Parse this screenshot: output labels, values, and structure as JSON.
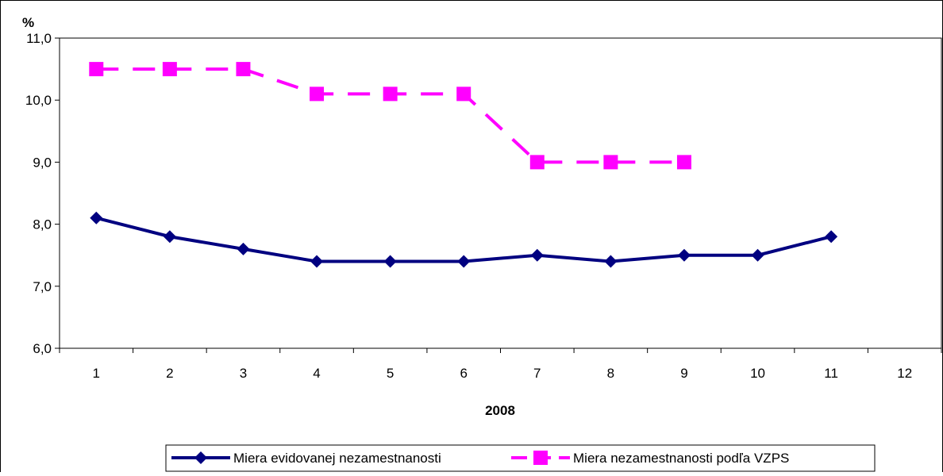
{
  "chart_data": {
    "type": "line",
    "title": "",
    "ylabel": "%",
    "xlabel": "2008",
    "categories": [
      "1",
      "2",
      "3",
      "4",
      "5",
      "6",
      "7",
      "8",
      "9",
      "10",
      "11",
      "12"
    ],
    "ylim": [
      6.0,
      11.0
    ],
    "yticks": [
      "6,0",
      "7,0",
      "8,0",
      "9,0",
      "10,0",
      "11,0"
    ],
    "grid": false,
    "legend_position": "bottom",
    "series": [
      {
        "name": "Miera evidovanej nezamestnanosti",
        "values": [
          8.1,
          7.8,
          7.6,
          7.4,
          7.4,
          7.4,
          7.5,
          7.4,
          7.5,
          7.5,
          7.8,
          null
        ],
        "color": "#000080",
        "marker": "diamond",
        "dash": "solid"
      },
      {
        "name": "Miera nezamestnanosti podľa VZPS",
        "values": [
          10.5,
          10.5,
          10.5,
          10.1,
          10.1,
          10.1,
          9.0,
          9.0,
          9.0,
          null,
          null,
          null
        ],
        "color": "#FF00FF",
        "marker": "square",
        "dash": "dashed"
      }
    ]
  }
}
